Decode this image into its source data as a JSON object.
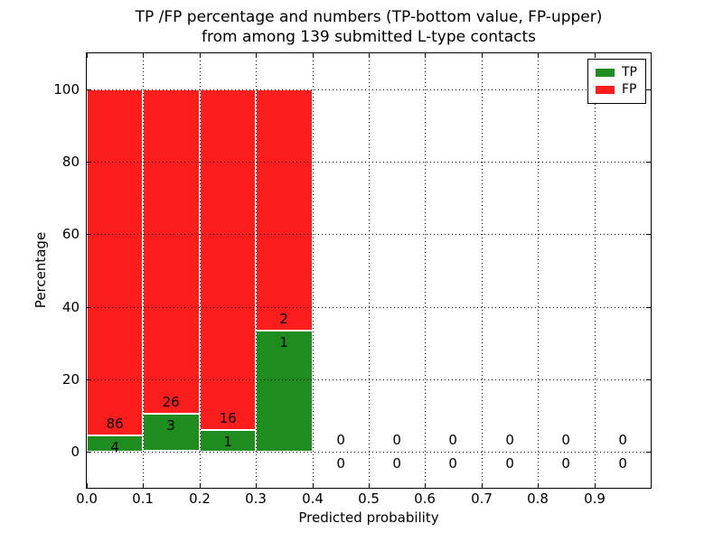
{
  "figure": {
    "title_line1": "TP /FP percentage and numbers (TP-bottom value, FP-upper)",
    "title_line2": "from among 139 submitted L-type contacts"
  },
  "chart_data": {
    "type": "bar",
    "stacked": true,
    "title": "TP /FP percentage and numbers (TP-bottom value, FP-upper)\nfrom among 139 submitted L-type contacts",
    "xlabel": "Predicted probability",
    "ylabel": "Percentage",
    "xlim": [
      0.0,
      1.0
    ],
    "ylim": [
      -10,
      110
    ],
    "grid": "dotted",
    "total_contacts": 139,
    "x_tick_labels": [
      "0.0",
      "0.1",
      "0.2",
      "0.3",
      "0.4",
      "0.5",
      "0.6",
      "0.7",
      "0.8",
      "0.9"
    ],
    "y_tick_values": [
      0,
      20,
      40,
      60,
      80,
      100
    ],
    "colors": {
      "tp": "#1e8c1e",
      "fp": "#fc1d1d"
    },
    "legend": {
      "position": "upper right",
      "entries": [
        {
          "label": "TP",
          "color": "#1e8c1e"
        },
        {
          "label": "FP",
          "color": "#fc1d1d"
        }
      ]
    },
    "bins": [
      {
        "x_start": 0.0,
        "x_end": 0.1,
        "tp_count": 4,
        "fp_count": 86,
        "tp_pct": 4.44,
        "fp_pct": 95.56
      },
      {
        "x_start": 0.1,
        "x_end": 0.2,
        "tp_count": 3,
        "fp_count": 26,
        "tp_pct": 10.34,
        "fp_pct": 89.66
      },
      {
        "x_start": 0.2,
        "x_end": 0.3,
        "tp_count": 1,
        "fp_count": 16,
        "tp_pct": 5.88,
        "fp_pct": 94.12
      },
      {
        "x_start": 0.3,
        "x_end": 0.4,
        "tp_count": 1,
        "fp_count": 2,
        "tp_pct": 33.33,
        "fp_pct": 66.67
      },
      {
        "x_start": 0.4,
        "x_end": 0.5,
        "tp_count": 0,
        "fp_count": 0,
        "tp_pct": 0,
        "fp_pct": 0
      },
      {
        "x_start": 0.5,
        "x_end": 0.6,
        "tp_count": 0,
        "fp_count": 0,
        "tp_pct": 0,
        "fp_pct": 0
      },
      {
        "x_start": 0.6,
        "x_end": 0.7,
        "tp_count": 0,
        "fp_count": 0,
        "tp_pct": 0,
        "fp_pct": 0
      },
      {
        "x_start": 0.7,
        "x_end": 0.8,
        "tp_count": 0,
        "fp_count": 0,
        "tp_pct": 0,
        "fp_pct": 0
      },
      {
        "x_start": 0.8,
        "x_end": 0.9,
        "tp_count": 0,
        "fp_count": 0,
        "tp_pct": 0,
        "fp_pct": 0
      },
      {
        "x_start": 0.9,
        "x_end": 1.0,
        "tp_count": 0,
        "fp_count": 0,
        "tp_pct": 0,
        "fp_pct": 0
      }
    ]
  }
}
